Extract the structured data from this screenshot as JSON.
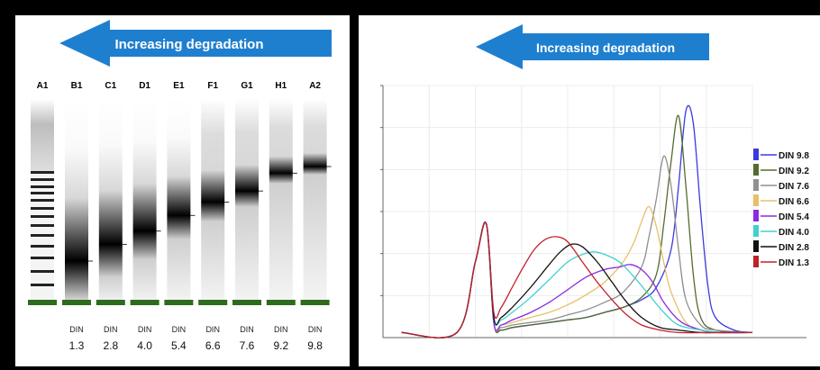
{
  "left_panel": {
    "banner": "Increasing degradation",
    "ladder_label": "A1",
    "lanes": [
      {
        "id": "B1",
        "din_label": "DIN",
        "din": "1.3",
        "din_num": 1.3
      },
      {
        "id": "C1",
        "din_label": "DIN",
        "din": "2.8",
        "din_num": 2.8
      },
      {
        "id": "D1",
        "din_label": "DIN",
        "din": "4.0",
        "din_num": 4.0
      },
      {
        "id": "E1",
        "din_label": "DIN",
        "din": "5.4",
        "din_num": 5.4
      },
      {
        "id": "F1",
        "din_label": "DIN",
        "din": "6.6",
        "din_num": 6.6
      },
      {
        "id": "G1",
        "din_label": "DIN",
        "din": "7.6",
        "din_num": 7.6
      },
      {
        "id": "H1",
        "din_label": "DIN",
        "din": "9.2",
        "din_num": 9.2
      },
      {
        "id": "A2",
        "din_label": "DIN",
        "din": "9.8",
        "din_num": 9.8
      }
    ],
    "colors": {
      "banner": "#1f7fcf",
      "marker_band": "#2e6b1e"
    }
  },
  "chart_data": {
    "type": "line",
    "title": "Increasing degradation",
    "grid": true,
    "legend_placement": "right",
    "x_range": [
      0,
      100
    ],
    "y_range": [
      0,
      100
    ],
    "series": [
      {
        "name": "DIN 9.8",
        "color": "#3a3ae0",
        "x": [
          5,
          20,
          25,
          28,
          30,
          32,
          35,
          40,
          45,
          50,
          55,
          60,
          65,
          70,
          74,
          78,
          80,
          82,
          84,
          86,
          88,
          90,
          95,
          100
        ],
        "y": [
          2,
          2,
          30,
          45,
          6,
          3,
          4,
          5,
          6,
          7,
          8,
          10,
          12,
          15,
          20,
          35,
          60,
          90,
          85,
          50,
          20,
          8,
          3,
          2
        ]
      },
      {
        "name": "DIN 9.2",
        "color": "#556b2f",
        "x": [
          5,
          20,
          25,
          28,
          30,
          32,
          35,
          40,
          45,
          50,
          55,
          60,
          65,
          70,
          74,
          76,
          78,
          80,
          82,
          84,
          86,
          90,
          100
        ],
        "y": [
          2,
          2,
          30,
          45,
          6,
          3,
          4,
          5,
          6,
          7,
          8,
          10,
          12,
          16,
          25,
          45,
          70,
          88,
          60,
          25,
          8,
          3,
          2
        ]
      },
      {
        "name": "DIN 7.6",
        "color": "#909090",
        "x": [
          5,
          20,
          25,
          28,
          30,
          32,
          35,
          40,
          45,
          50,
          55,
          60,
          65,
          70,
          72,
          74,
          76,
          78,
          80,
          82,
          86,
          90,
          100
        ],
        "y": [
          2,
          2,
          30,
          45,
          6,
          4,
          5,
          6,
          7,
          9,
          11,
          14,
          18,
          28,
          40,
          55,
          72,
          60,
          35,
          15,
          5,
          3,
          2
        ]
      },
      {
        "name": "DIN 6.6",
        "color": "#e8c06a",
        "x": [
          5,
          20,
          25,
          28,
          30,
          32,
          35,
          40,
          45,
          50,
          55,
          60,
          65,
          68,
          70,
          72,
          74,
          76,
          78,
          82,
          86,
          90,
          100
        ],
        "y": [
          2,
          2,
          30,
          45,
          6,
          5,
          6,
          8,
          10,
          13,
          17,
          22,
          30,
          38,
          46,
          52,
          44,
          30,
          18,
          6,
          3,
          2,
          2
        ]
      },
      {
        "name": "DIN 5.4",
        "color": "#8a2be2",
        "x": [
          5,
          20,
          25,
          28,
          30,
          32,
          35,
          40,
          45,
          50,
          55,
          60,
          64,
          67,
          70,
          73,
          76,
          80,
          84,
          90,
          100
        ],
        "y": [
          2,
          2,
          30,
          45,
          6,
          5,
          7,
          10,
          14,
          19,
          24,
          27,
          28,
          29,
          27,
          22,
          14,
          7,
          4,
          2,
          2
        ]
      },
      {
        "name": "DIN 4.0",
        "color": "#40d0d0",
        "x": [
          5,
          20,
          25,
          28,
          30,
          32,
          35,
          40,
          45,
          50,
          54,
          57,
          60,
          64,
          68,
          72,
          76,
          80,
          86,
          92,
          100
        ],
        "y": [
          2,
          2,
          30,
          45,
          8,
          7,
          10,
          16,
          23,
          30,
          33,
          34,
          33,
          30,
          24,
          17,
          10,
          5,
          3,
          2,
          2
        ]
      },
      {
        "name": "DIN 2.8",
        "color": "#111111",
        "x": [
          5,
          20,
          25,
          28,
          30,
          32,
          35,
          40,
          45,
          48,
          51,
          54,
          58,
          62,
          66,
          70,
          75,
          80,
          86,
          92,
          100
        ],
        "y": [
          2,
          2,
          30,
          45,
          8,
          8,
          12,
          20,
          29,
          34,
          37,
          36,
          30,
          22,
          14,
          8,
          4,
          3,
          2,
          2,
          2
        ]
      },
      {
        "name": "DIN 1.3",
        "color": "#c0202a",
        "x": [
          5,
          20,
          25,
          28,
          30,
          32,
          35,
          38,
          41,
          44,
          47,
          50,
          54,
          58,
          62,
          66,
          70,
          75,
          80,
          90,
          100
        ],
        "y": [
          2,
          2,
          30,
          45,
          10,
          12,
          20,
          28,
          35,
          39,
          40,
          38,
          30,
          22,
          15,
          9,
          5,
          3,
          2,
          2,
          2
        ]
      }
    ]
  }
}
